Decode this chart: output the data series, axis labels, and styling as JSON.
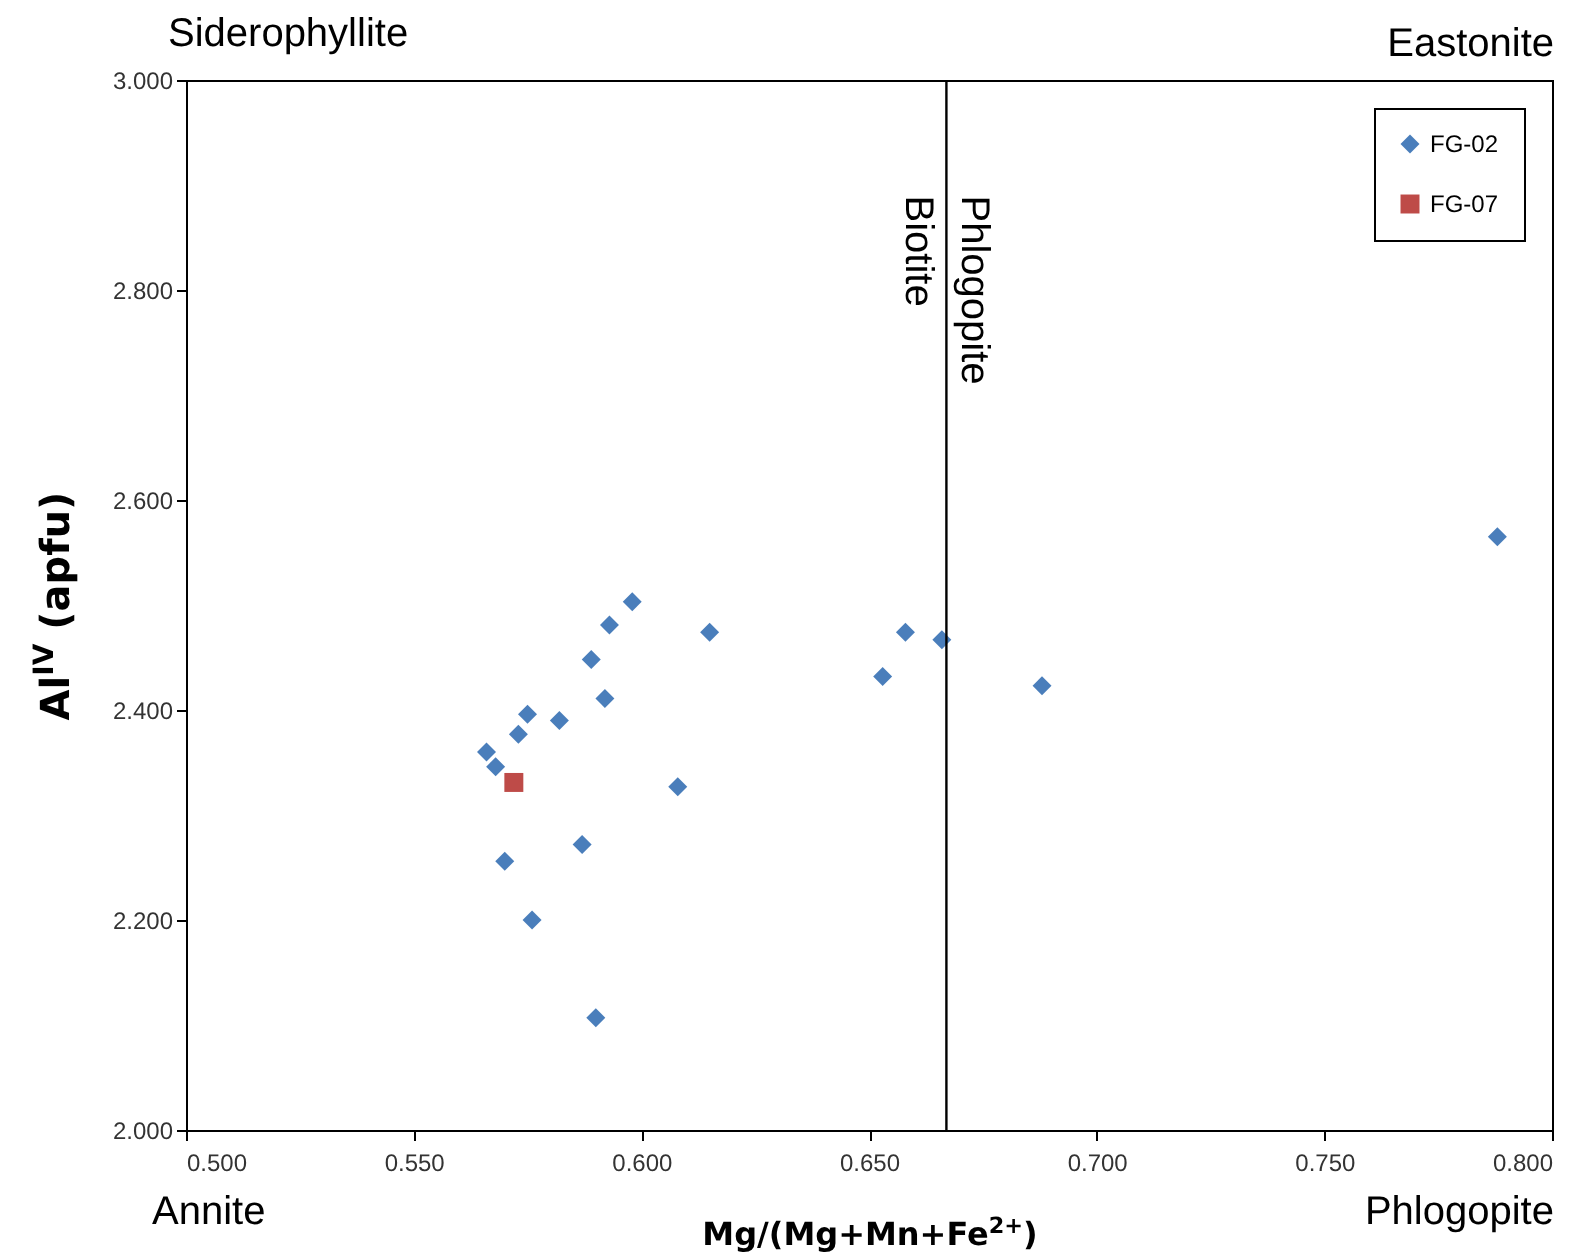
{
  "chart_data": {
    "type": "scatter",
    "xlabel": "Mg/(Mg+Mn+Fe$^{2+}$)",
    "ylabel": "Al$^{IV}$ (apfu)",
    "xlim": [
      0.5,
      0.8
    ],
    "ylim": [
      2.0,
      3.0
    ],
    "xticks": [
      {
        "value": 0.5,
        "label": "0.500"
      },
      {
        "value": 0.55,
        "label": "0.550"
      },
      {
        "value": 0.6,
        "label": "0.600"
      },
      {
        "value": 0.65,
        "label": "0.650"
      },
      {
        "value": 0.7,
        "label": "0.700"
      },
      {
        "value": 0.75,
        "label": "0.750"
      },
      {
        "value": 0.8,
        "label": "0.800"
      }
    ],
    "yticks": [
      {
        "value": 2.0,
        "label": "2.000"
      },
      {
        "value": 2.2,
        "label": "2.200"
      },
      {
        "value": 2.4,
        "label": "2.400"
      },
      {
        "value": 2.6,
        "label": "2.600"
      },
      {
        "value": 2.8,
        "label": "2.800"
      },
      {
        "value": 3.0,
        "label": "3.000"
      }
    ],
    "grid": false,
    "legend": "top right",
    "series": [
      {
        "name": "FG-02",
        "color": "#4a7ebb",
        "marker": "diamond",
        "x": [
          0.598,
          0.593,
          0.615,
          0.589,
          0.592,
          0.575,
          0.582,
          0.573,
          0.566,
          0.568,
          0.608,
          0.587,
          0.57,
          0.576,
          0.59,
          0.658,
          0.666,
          0.653,
          0.688,
          0.788
        ],
        "values": [
          2.503,
          2.481,
          2.474,
          2.448,
          2.411,
          2.396,
          2.39,
          2.377,
          2.36,
          2.346,
          2.327,
          2.272,
          2.256,
          2.2,
          2.107,
          2.474,
          2.467,
          2.432,
          2.423,
          2.565
        ]
      },
      {
        "name": "FG-07",
        "color": "#be4b48",
        "marker": "square",
        "x": [
          0.572
        ],
        "values": [
          2.331
        ]
      }
    ],
    "ref_lines": [
      {
        "axis": "x",
        "value": 0.667,
        "color": "#000000"
      }
    ],
    "annotations": [
      "Siderophyllite",
      "Eastonite",
      "Annite",
      "Phlogopite",
      {
        "text": "Biotite",
        "x": 0.667,
        "y": 2.89
      },
      {
        "text": "Phlogopite",
        "x": 0.667,
        "y": 2.89
      }
    ]
  }
}
